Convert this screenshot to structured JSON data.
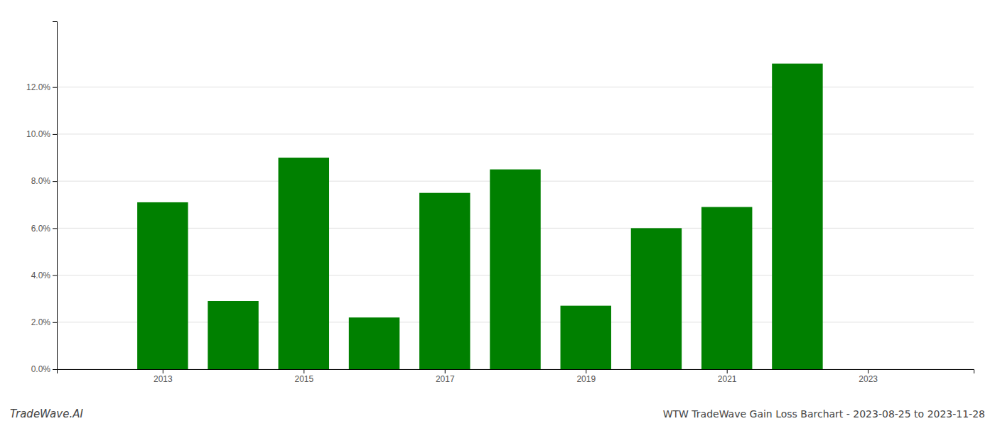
{
  "chart_data": {
    "type": "bar",
    "title": "WTW TradeWave Gain Loss Barchart - 2023-08-25 to 2023-11-28",
    "annotations": [
      "TradeWave.AI"
    ],
    "x": [
      2013,
      2014,
      2015,
      2016,
      2017,
      2018,
      2019,
      2020,
      2021,
      2022
    ],
    "values": [
      0.071,
      0.029,
      0.09,
      0.022,
      0.075,
      0.085,
      0.027,
      0.06,
      0.069,
      0.13
    ],
    "color": "#008000",
    "xlim": [
      2011.5,
      2024.5
    ],
    "xticks": [
      2013,
      2015,
      2017,
      2019,
      2021,
      2023
    ],
    "ylim": [
      0,
      0.148
    ],
    "yticks": [
      {
        "value": 0.0,
        "label": "0.0%"
      },
      {
        "value": 0.02,
        "label": "2.0%"
      },
      {
        "value": 0.04,
        "label": "4.0%"
      },
      {
        "value": 0.06,
        "label": "6.0%"
      },
      {
        "value": 0.08,
        "label": "8.0%"
      },
      {
        "value": 0.1,
        "label": "10.0%"
      },
      {
        "value": 0.12,
        "label": "12.0%"
      }
    ],
    "grid": true
  }
}
